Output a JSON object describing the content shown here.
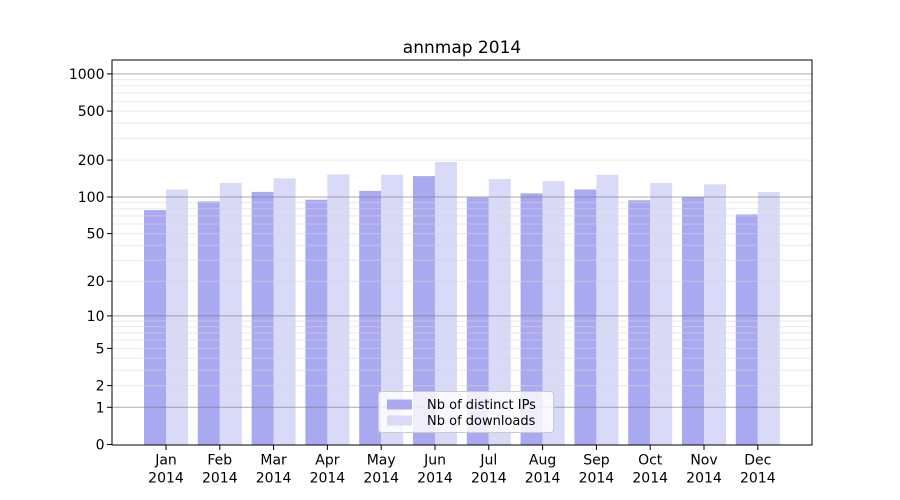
{
  "chart_data": {
    "type": "bar",
    "title": "annmap 2014",
    "categories": [
      "Jan",
      "Feb",
      "Mar",
      "Apr",
      "May",
      "Jun",
      "Jul",
      "Aug",
      "Sep",
      "Oct",
      "Nov",
      "Dec"
    ],
    "year_label": "2014",
    "series": [
      {
        "name": "Nb of distinct IPs",
        "color": "#a9a9f2",
        "values": [
          78,
          92,
          110,
          95,
          112,
          148,
          99,
          107,
          115,
          94,
          100,
          72
        ]
      },
      {
        "name": "Nb of downloads",
        "color": "#d9d9f8",
        "values": [
          115,
          130,
          142,
          153,
          152,
          193,
          140,
          135,
          152,
          130,
          127,
          110
        ]
      }
    ],
    "yscale": "log1p",
    "yticks": [
      0,
      1,
      2,
      5,
      10,
      20,
      50,
      100,
      200,
      500,
      1000
    ],
    "major_grid_values": [
      1,
      10,
      100,
      1000
    ],
    "ylim": [
      0,
      1285
    ],
    "grid": true,
    "legend_position": "lower center"
  },
  "colors": {
    "major_grid": "#787878",
    "minor_grid": "#d9d9d9",
    "axis": "#000000",
    "legend_border": "#cccccc",
    "background": "#ffffff"
  }
}
